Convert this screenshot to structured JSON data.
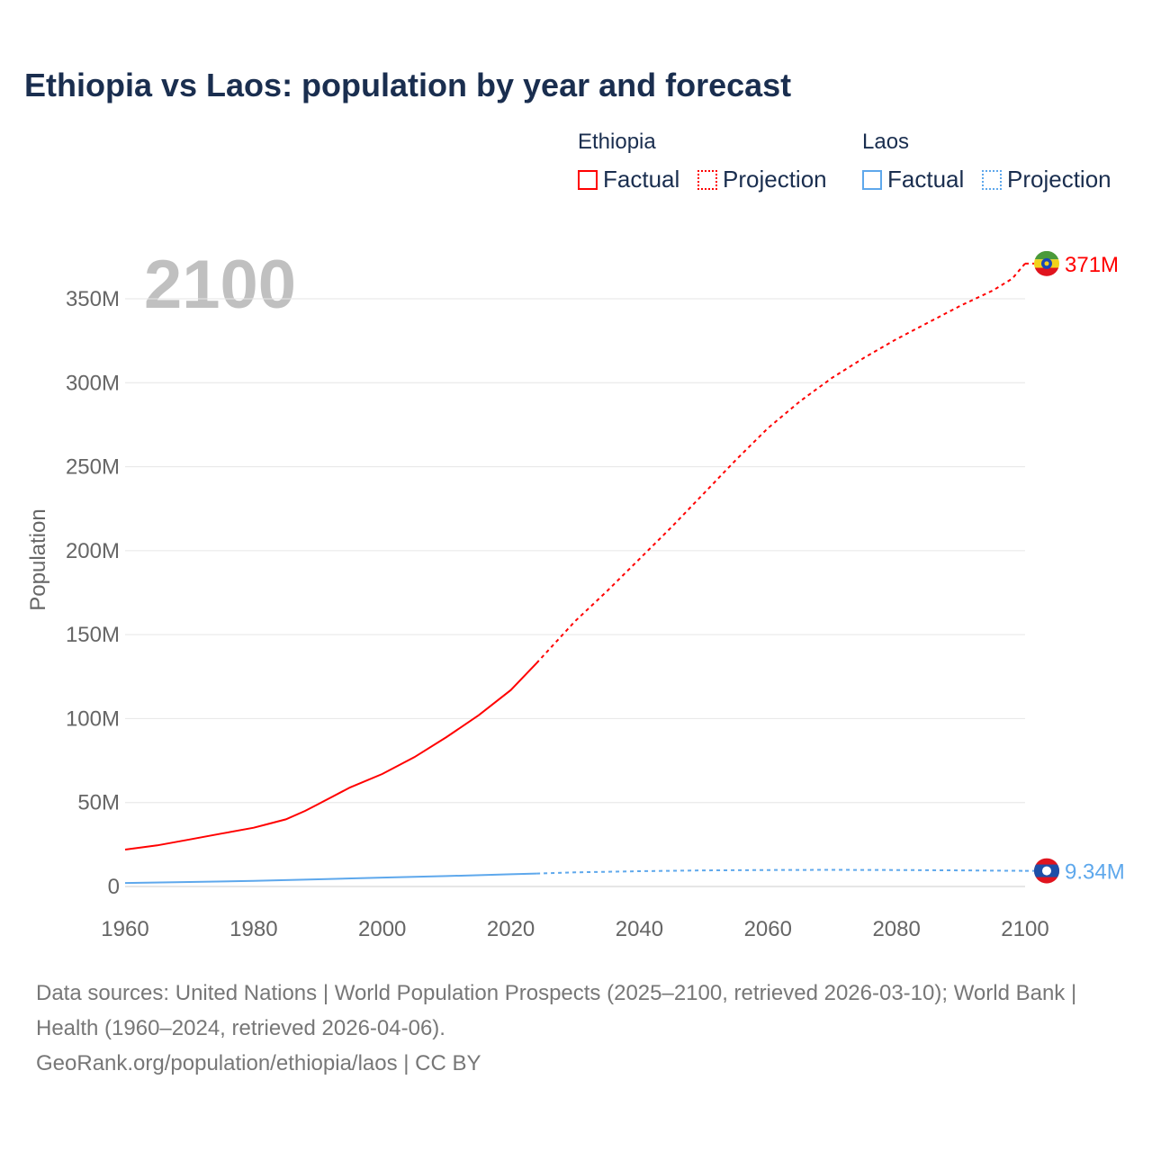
{
  "chart_data": {
    "type": "line",
    "title": "Ethiopia vs Laos: population by year and forecast",
    "ylabel": "Population",
    "xlabel": "",
    "xlim": [
      1960,
      2100
    ],
    "ylim": [
      0,
      370000000
    ],
    "x_ticks": [
      "1960",
      "1980",
      "2000",
      "2020",
      "2040",
      "2060",
      "2080",
      "2100"
    ],
    "y_ticks": [
      {
        "v": 0,
        "label": "0"
      },
      {
        "v": 50000000,
        "label": "50M"
      },
      {
        "v": 100000000,
        "label": "100M"
      },
      {
        "v": 150000000,
        "label": "150M"
      },
      {
        "v": 200000000,
        "label": "200M"
      },
      {
        "v": 250000000,
        "label": "250M"
      },
      {
        "v": 300000000,
        "label": "300M"
      },
      {
        "v": 350000000,
        "label": "350M"
      }
    ],
    "year_watermark": "2100",
    "grid": true,
    "legend": {
      "groups": [
        {
          "name": "Ethiopia",
          "items": [
            "Factual",
            "Projection"
          ]
        },
        {
          "name": "Laos",
          "items": [
            "Factual",
            "Projection"
          ]
        }
      ],
      "placement": "top-right"
    },
    "series": [
      {
        "name": "Ethiopia",
        "color": "#ff0000",
        "end_label": "371M",
        "factual": {
          "x": [
            1960,
            1965,
            1970,
            1975,
            1980,
            1982,
            1985,
            1988,
            1990,
            1992,
            1995,
            2000,
            2005,
            2010,
            2015,
            2020,
            2024
          ],
          "y": [
            22,
            24.5,
            28,
            31.5,
            35,
            37,
            40,
            45,
            49,
            53,
            59,
            67,
            77,
            89,
            102,
            117,
            133
          ]
        },
        "projection": {
          "x": [
            2024,
            2030,
            2035,
            2040,
            2045,
            2050,
            2055,
            2060,
            2065,
            2070,
            2075,
            2080,
            2085,
            2090,
            2095,
            2098,
            2100
          ],
          "y": [
            133,
            158,
            176,
            195,
            214,
            234,
            254,
            273,
            289,
            303,
            315,
            326,
            336,
            346,
            355,
            362,
            371
          ]
        }
      },
      {
        "name": "Laos",
        "color": "#5ea8ec",
        "end_label": "9.34M",
        "factual": {
          "x": [
            1960,
            1970,
            1980,
            1990,
            2000,
            2010,
            2020,
            2024
          ],
          "y": [
            2.1,
            2.7,
            3.3,
            4.3,
            5.3,
            6.2,
            7.3,
            7.7
          ]
        },
        "projection": {
          "x": [
            2024,
            2030,
            2040,
            2050,
            2060,
            2070,
            2080,
            2090,
            2100
          ],
          "y": [
            7.7,
            8.4,
            9.1,
            9.6,
            9.8,
            9.9,
            9.8,
            9.6,
            9.34
          ]
        }
      }
    ],
    "units_note": "y values in millions"
  },
  "footer": {
    "sources": "Data sources: United Nations | World Population Prospects (2025–2100, retrieved 2026-03-10); World Bank | Health (1960–2024, retrieved 2026-04-06).",
    "credit": "GeoRank.org/population/ethiopia/laos | CC BY"
  }
}
